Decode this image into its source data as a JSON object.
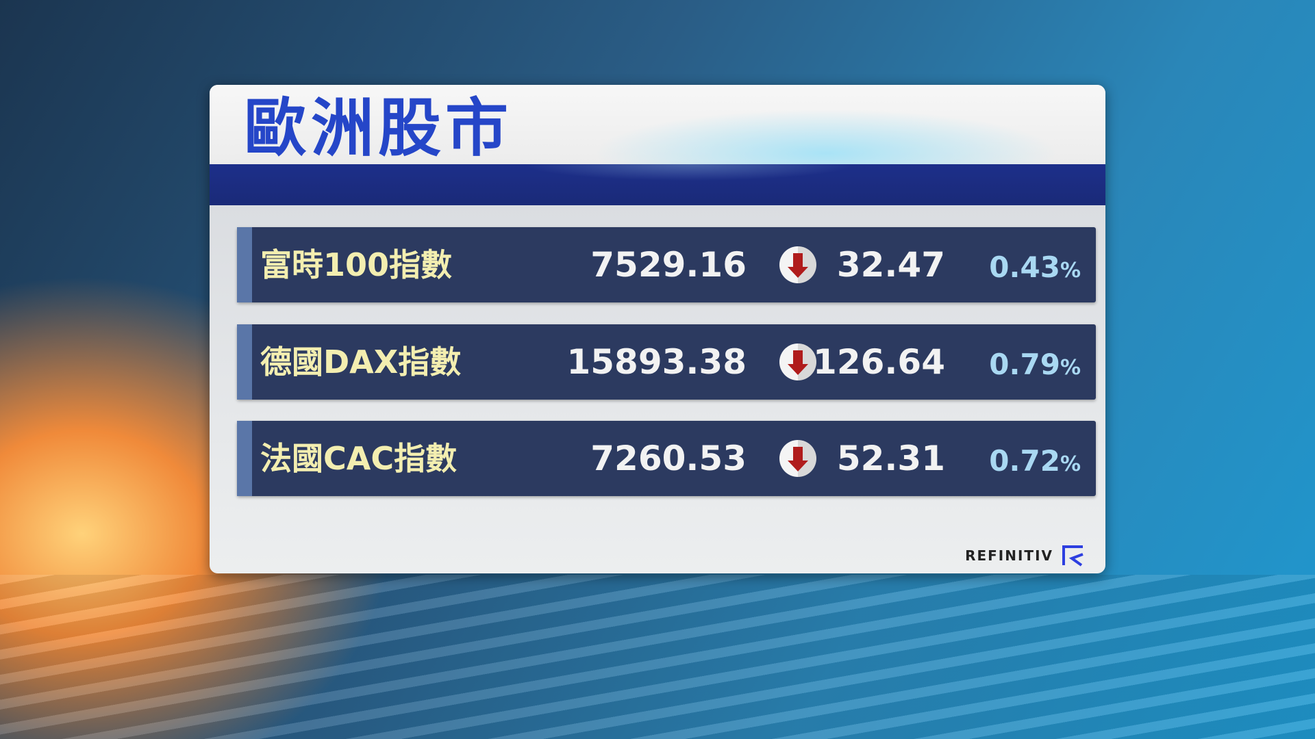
{
  "title": "歐洲股市",
  "rows": [
    {
      "name": "富時100指數",
      "value": "7529.16",
      "direction": "down",
      "change": "32.47",
      "percent": "0.43",
      "percent_sign": "%"
    },
    {
      "name": "德國DAX指數",
      "value": "15893.38",
      "direction": "down",
      "change": "126.64",
      "percent": "0.79",
      "percent_sign": "%"
    },
    {
      "name": "法國CAC指數",
      "value": "7260.53",
      "direction": "down",
      "change": "52.31",
      "percent": "0.72",
      "percent_sign": "%"
    }
  ],
  "source": "REFINITIV",
  "colors": {
    "title": "#2546c8",
    "row_bg": "#2c3a60",
    "name": "#f3eeb0",
    "percent": "#a9d8f2",
    "down_arrow": "#b01c1c"
  }
}
